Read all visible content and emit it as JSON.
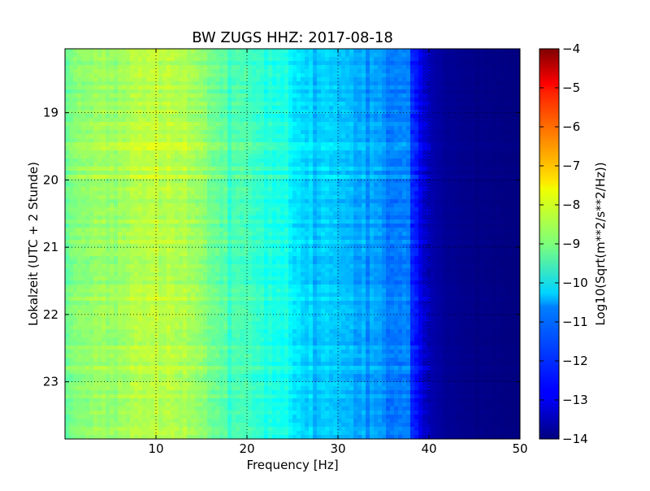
{
  "chart_data": {
    "type": "heatmap",
    "title": "BW ZUGS HHZ: 2017-08-18",
    "xlabel": "Frequency [Hz]",
    "ylabel": "Lokalzeit (UTC + 2 Stunde)",
    "xlim": [
      0,
      50
    ],
    "ylim": [
      23.85,
      18.05
    ],
    "y_inverted": true,
    "x_ticks": [
      10,
      20,
      30,
      40,
      50
    ],
    "x_tick_labels": [
      "10",
      "20",
      "30",
      "40",
      "50"
    ],
    "y_ticks": [
      19,
      20,
      21,
      22,
      23
    ],
    "y_tick_labels": [
      "19",
      "20",
      "21",
      "22",
      "23"
    ],
    "grid": true,
    "colormap": "jet",
    "colorbar": {
      "label": "Log10(Sqrt(m**2/s**2/Hz))",
      "range": [
        -14,
        -4
      ],
      "ticks": [
        -14,
        -13,
        -12,
        -11,
        -10,
        -9,
        -8,
        -7,
        -6,
        -5,
        -4
      ],
      "tick_labels": [
        "−14",
        "−13",
        "−12",
        "−11",
        "−10",
        "−9",
        "−8",
        "−7",
        "−6",
        "−5",
        "−4"
      ]
    },
    "profile": {
      "frequency_hz": [
        0,
        2,
        5,
        8,
        10,
        13,
        15,
        18,
        20,
        22,
        24.5,
        25,
        28,
        30,
        33,
        35,
        37,
        37.5,
        38,
        39,
        40,
        42,
        45,
        50
      ],
      "log10_value": [
        -9.0,
        -8.9,
        -8.7,
        -8.5,
        -8.4,
        -8.5,
        -8.9,
        -9.4,
        -9.6,
        -9.9,
        -10.1,
        -10.5,
        -10.7,
        -10.9,
        -11.1,
        -11.3,
        -11.6,
        -11.2,
        -12.0,
        -12.8,
        -13.5,
        -13.8,
        -13.9,
        -14.0
      ]
    }
  }
}
